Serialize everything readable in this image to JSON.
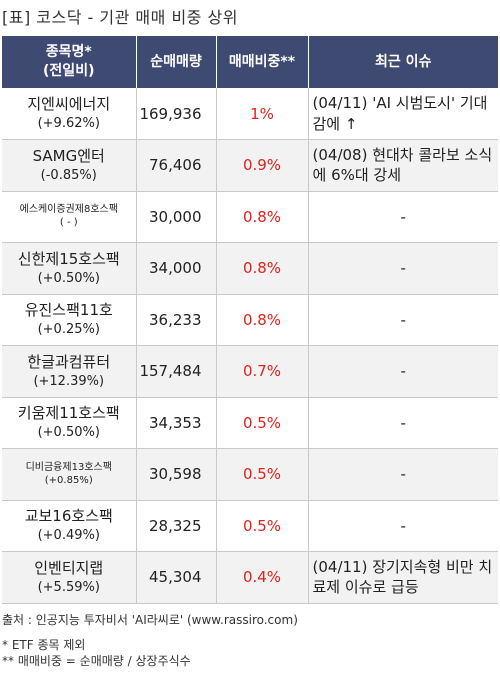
{
  "title": "[표] 코스닥 - 기관 매매 비중 상위",
  "headers": {
    "name_line1": "종목명*",
    "name_line2": "(전일비)",
    "volume": "순매매량",
    "ratio": "매매비중**",
    "issue": "최근 이슈"
  },
  "rows": [
    {
      "name": "지엔씨에너지",
      "change": "(+9.62%)",
      "volume": "169,936",
      "ratio": "1%",
      "issue": "(04/11) 'AI 시범도시' 기대감에 ↑"
    },
    {
      "name": "SAMG엔터",
      "change": "(-0.85%)",
      "volume": "76,406",
      "ratio": "0.9%",
      "issue": "(04/08) 현대차 콜라보 소식에 6%대 강세"
    },
    {
      "name": "에스케이증권제8호스팩",
      "change": "( - )",
      "volume": "30,000",
      "ratio": "0.8%",
      "issue": "-"
    },
    {
      "name": "신한제15호스팩",
      "change": "(+0.50%)",
      "volume": "34,000",
      "ratio": "0.8%",
      "issue": "-"
    },
    {
      "name": "유진스팩11호",
      "change": "(+0.25%)",
      "volume": "36,233",
      "ratio": "0.8%",
      "issue": "-"
    },
    {
      "name": "한글과컴퓨터",
      "change": "(+12.39%)",
      "volume": "157,484",
      "ratio": "0.7%",
      "issue": "-"
    },
    {
      "name": "키움제11호스팩",
      "change": "(+0.50%)",
      "volume": "34,353",
      "ratio": "0.5%",
      "issue": "-"
    },
    {
      "name": "디비금융제13호스팩",
      "change": "(+0.85%)",
      "volume": "30,598",
      "ratio": "0.5%",
      "issue": "-"
    },
    {
      "name": "교보16호스팩",
      "change": "(+0.49%)",
      "volume": "28,325",
      "ratio": "0.5%",
      "issue": "-"
    },
    {
      "name": "인벤티지랩",
      "change": "(+5.59%)",
      "volume": "45,304",
      "ratio": "0.4%",
      "issue": "(04/11) 장기지속형 비만 치료제 이슈로 급등"
    }
  ],
  "source": "출처 : 인공지능 투자비서 'AI라씨로' (www.rassiro.com)",
  "notes": [
    "* ETF 종목 제외",
    "** 매매비중 = 순매매량 / 상장주식수"
  ]
}
